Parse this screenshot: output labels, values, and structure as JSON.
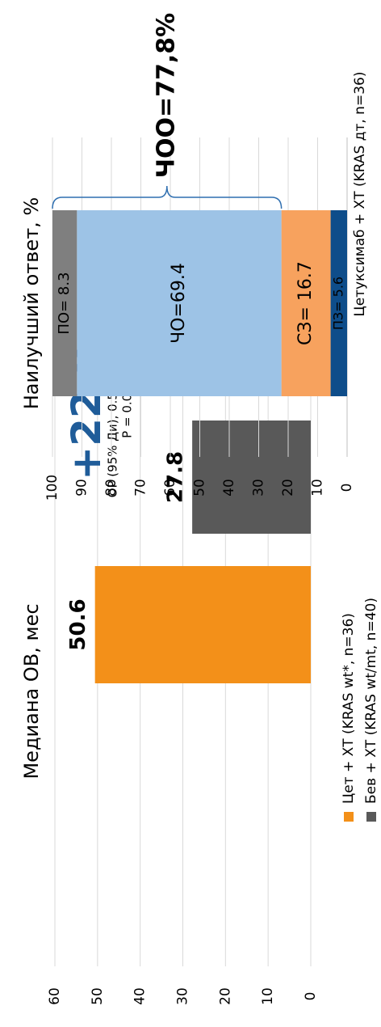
{
  "chart_data": [
    {
      "type": "bar",
      "title": "Медиана ОВ, мес",
      "annotations": [
        "+22.8",
        "мес",
        "ОР (95% Ди), 0.55 (0.32–0.97)",
        "P = 0.0378"
      ],
      "series": [
        {
          "name": "Цет + ХТ (KRAS wt*, n=36)",
          "color": "#f39019",
          "values": [
            50.6
          ]
        },
        {
          "name": "Бев + ХТ (KRAS wt/mt, n=40)",
          "color": "#595959",
          "values": [
            27.8
          ]
        }
      ],
      "ylim": [
        0,
        60
      ],
      "yticks": [
        0,
        10,
        20,
        30,
        40,
        50,
        60
      ],
      "grid": true
    },
    {
      "type": "stacked_bar",
      "title": "Наилучший ответ, %",
      "categories": [
        "Цетуксимаб + ХТ (KRAS дт, n=36)"
      ],
      "annotations": [
        "ЧОО=77,8%"
      ],
      "series": [
        {
          "color": "#0e4d8a",
          "values": [
            5.6
          ],
          "value_labels": [
            "ПЗ= 5.6"
          ]
        },
        {
          "color": "#f7a25e",
          "values": [
            16.7
          ],
          "value_labels": [
            "СЗ= 16.7"
          ]
        },
        {
          "color": "#9dc3e6",
          "values": [
            69.4
          ],
          "value_labels": [
            "ЧО=69.4"
          ]
        },
        {
          "color": "#7f7f7f",
          "values": [
            8.3
          ],
          "value_labels": [
            "ПО= 8.3"
          ]
        }
      ],
      "ylim": [
        0,
        100
      ],
      "yticks": [
        0,
        10,
        20,
        30,
        40,
        50,
        60,
        70,
        80,
        90,
        100
      ],
      "grid": true
    }
  ]
}
